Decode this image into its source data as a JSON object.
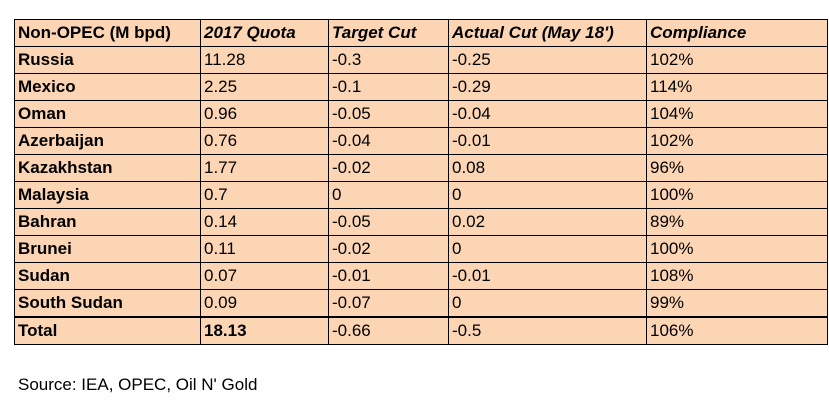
{
  "table": {
    "header": [
      "Non-OPEC (M bpd)",
      "2017 Quota",
      "Target Cut",
      "Actual Cut (May 18')",
      "Compliance"
    ],
    "rows": [
      [
        "Russia",
        "11.28",
        "-0.3",
        "-0.25",
        "102%"
      ],
      [
        "Mexico",
        "2.25",
        "-0.1",
        "-0.29",
        "114%"
      ],
      [
        "Oman",
        "0.96",
        "-0.05",
        "-0.04",
        "104%"
      ],
      [
        "Azerbaijan",
        "0.76",
        "-0.04",
        "-0.01",
        "102%"
      ],
      [
        "Kazakhstan",
        "1.77",
        "-0.02",
        "0.08",
        "96%"
      ],
      [
        "Malaysia",
        "0.7",
        "0",
        "0",
        "100%"
      ],
      [
        "Bahran",
        "0.14",
        "-0.05",
        "0.02",
        "89%"
      ],
      [
        "Brunei",
        "0.11",
        "-0.02",
        "0",
        "100%"
      ],
      [
        "Sudan",
        "0.07",
        "-0.01",
        "-0.01",
        "108%"
      ],
      [
        "South Sudan",
        "0.09",
        "-0.07",
        "0",
        "99%"
      ]
    ],
    "total": [
      "Total",
      "18.13",
      "-0.66",
      "-0.5",
      "106%"
    ]
  },
  "source": "Source: IEA, OPEC, Oil N' Gold"
}
